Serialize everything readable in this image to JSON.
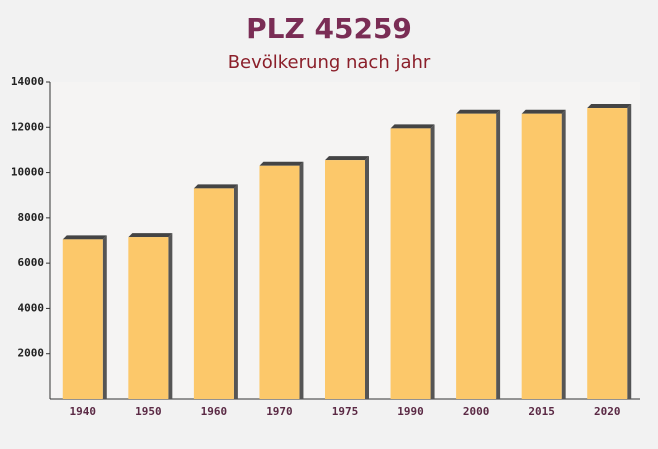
{
  "chart_data": {
    "type": "bar",
    "title": "PLZ 45259",
    "subtitle": "Bevölkerung nach jahr",
    "categories": [
      "1940",
      "1950",
      "1960",
      "1970",
      "1975",
      "1990",
      "2000",
      "2015",
      "2020"
    ],
    "values": [
      7050,
      7150,
      9300,
      10300,
      10550,
      11950,
      12600,
      12600,
      12850
    ],
    "color": "#fcc86a",
    "ylim": [
      0,
      14000
    ],
    "yticks": [
      2000,
      4000,
      6000,
      8000,
      10000,
      12000,
      14000
    ],
    "grid": false
  }
}
